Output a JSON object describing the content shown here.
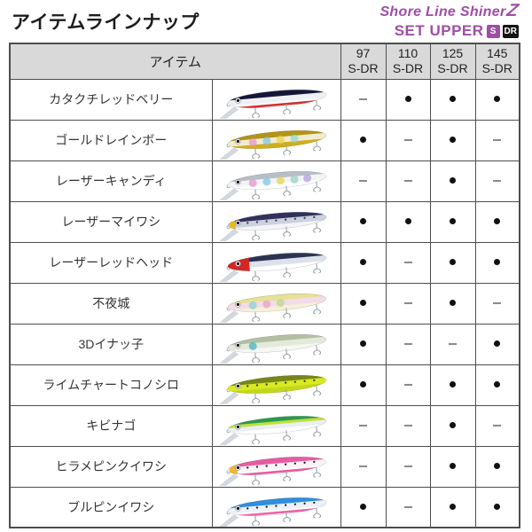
{
  "page_title": "アイテムラインナップ",
  "logo": {
    "brand": "Shore Line Shiner",
    "brand_z": "Z",
    "series": "SET UPPER",
    "badge_s": "S",
    "badge_dr": "DR",
    "purple": "#a04da6"
  },
  "table": {
    "item_header": "アイテム",
    "columns": [
      {
        "size": "97",
        "type": "S-DR"
      },
      {
        "size": "110",
        "type": "S-DR"
      },
      {
        "size": "125",
        "type": "S-DR"
      },
      {
        "size": "145",
        "type": "S-DR"
      }
    ],
    "marks": {
      "available": "●",
      "unavailable": "—"
    },
    "header_bg": "#d9d9d9",
    "border_color": "#4d4d4d"
  },
  "rows": [
    {
      "name": "カタクチレッドベリー",
      "availability": [
        "—",
        "●",
        "●",
        "●"
      ],
      "lure": {
        "belly": "#ffffff",
        "mid": "#eef0f4",
        "back": "#16163a",
        "stripe": "#d43030"
      }
    },
    {
      "name": "ゴールドレインボー",
      "availability": [
        "●",
        "—",
        "●",
        "—"
      ],
      "lure": {
        "belly": "#cfae1e",
        "mid": "#f1ecd0",
        "back": "#b29417",
        "spots": [
          "#ea96c8",
          "#82c6ea",
          "#e8d44e",
          "#90d8cc"
        ]
      }
    },
    {
      "name": "レーザーキャンディ",
      "availability": [
        "—",
        "—",
        "●",
        "—"
      ],
      "lure": {
        "belly": "#ffffff",
        "mid": "#f2f4f6",
        "back": "#b8bec6",
        "spots": [
          "#ea96c8",
          "#82c6ea",
          "#e8d44e",
          "#9ad0c0",
          "#b49ee0"
        ]
      }
    },
    {
      "name": "レーザーマイワシ",
      "availability": [
        "●",
        "●",
        "●",
        "●"
      ],
      "lure": {
        "belly": "#f5f5f9",
        "mid": "#ccd1dd",
        "back": "#31315c",
        "dots": "#3c3f63",
        "head": {
          "x": 17,
          "w": 7,
          "color": "#e9b923"
        }
      }
    },
    {
      "name": "レーザーレッドヘッド",
      "availability": [
        "●",
        "—",
        "●",
        "●"
      ],
      "lure": {
        "belly": "#ffffff",
        "mid": "#dde2ea",
        "back": "#2c3352",
        "head": {
          "x": 14,
          "w": 26,
          "color": "#d62525"
        }
      }
    },
    {
      "name": "不夜城",
      "availability": [
        "●",
        "—",
        "●",
        "—"
      ],
      "lure": {
        "belly": "#f7f0d8",
        "mid": "#f3dbe7",
        "back": "#e7e195",
        "spots": [
          "#8ccfd8",
          "#e9a2ca",
          "#bcda92"
        ]
      }
    },
    {
      "name": "3Dイナッ子",
      "availability": [
        "●",
        "—",
        "—",
        "●"
      ],
      "lure": {
        "belly": "#f6f8f1",
        "mid": "#e5e9db",
        "back": "#b3bfa2",
        "spots": [
          "#43b7c2"
        ]
      }
    },
    {
      "name": "ライムチャートコノシロ",
      "availability": [
        "●",
        "—",
        "●",
        "●"
      ],
      "lure": {
        "belly": "#c3d71c",
        "mid": "#d9e922",
        "back": "#76861a",
        "dots": "#39430f"
      }
    },
    {
      "name": "キビナゴ",
      "availability": [
        "—",
        "—",
        "●",
        "—"
      ],
      "lure": {
        "belly": "#ffffff",
        "mid": "#eaeff1",
        "back": "#2a9a4e",
        "lateral": "#c2e03c"
      }
    },
    {
      "name": "ヒラメピンクイワシ",
      "availability": [
        "—",
        "—",
        "●",
        "●"
      ],
      "lure": {
        "belly": "#ffffff",
        "mid": "#f9f3f5",
        "back": "#e75ba2",
        "stripe": "#e75ba2",
        "dots": "#222222",
        "head": {
          "x": 17,
          "w": 9,
          "color": "#eeb931"
        }
      }
    },
    {
      "name": "ブルピンイワシ",
      "availability": [
        "●",
        "—",
        "●",
        "●"
      ],
      "lure": {
        "belly": "#ffffff",
        "mid": "#ebf1f7",
        "back": "#2f8edd",
        "stripe": "#ef63a9",
        "dots": "#222222"
      }
    }
  ]
}
